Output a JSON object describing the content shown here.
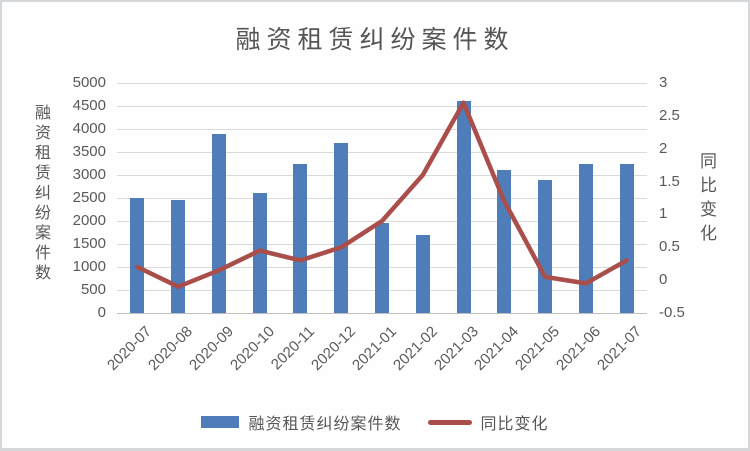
{
  "chart": {
    "title": "融资租赁纠纷案件数",
    "left_axis_title": "融资租赁纠纷案件数",
    "right_axis_title": "同比变化",
    "legend": [
      {
        "label": "融资租赁纠纷案件数",
        "type": "bar",
        "color": "#4e7dba"
      },
      {
        "label": "同比变化",
        "type": "line",
        "color": "#a94e4b"
      }
    ],
    "colors": {
      "bar": "#4e7dba",
      "line": "#a94e4b",
      "text": "#595959",
      "grid": "#dadada"
    }
  },
  "chart_data": {
    "type": "bar+line combo",
    "title": "融资租赁纠纷案件数",
    "categories": [
      "2020-07",
      "2020-08",
      "2020-09",
      "2020-10",
      "2020-11",
      "2020-12",
      "2021-01",
      "2021-02",
      "2021-03",
      "2021-04",
      "2021-05",
      "2021-06",
      "2021-07"
    ],
    "series": [
      {
        "name": "融资租赁纠纷案件数",
        "type": "bar",
        "axis": "left",
        "color": "#4e7dba",
        "values": [
          2500,
          2450,
          3900,
          2600,
          3250,
          3700,
          1950,
          1700,
          4600,
          3100,
          2900,
          3250,
          3250
        ]
      },
      {
        "name": "同比变化",
        "type": "line",
        "axis": "right",
        "color": "#a94e4b",
        "values": [
          0.2,
          -0.1,
          0.15,
          0.45,
          0.3,
          0.5,
          0.9,
          1.6,
          2.7,
          1.2,
          0.05,
          -0.05,
          0.3
        ]
      }
    ],
    "left_axis": {
      "label": "融资租赁纠纷案件数",
      "min": 0,
      "max": 5000,
      "step": 500
    },
    "right_axis": {
      "label": "同比变化",
      "min": -0.5,
      "max": 3,
      "step": 0.5
    },
    "left_tick_labels": [
      "5000",
      "4500",
      "4000",
      "3500",
      "3000",
      "2500",
      "2000",
      "1500",
      "1000",
      "500",
      "0"
    ],
    "right_tick_labels": [
      "3",
      "2.5",
      "2",
      "1.5",
      "1",
      "0.5",
      "0",
      "-0.5"
    ],
    "grid": true,
    "legend_position": "bottom"
  }
}
